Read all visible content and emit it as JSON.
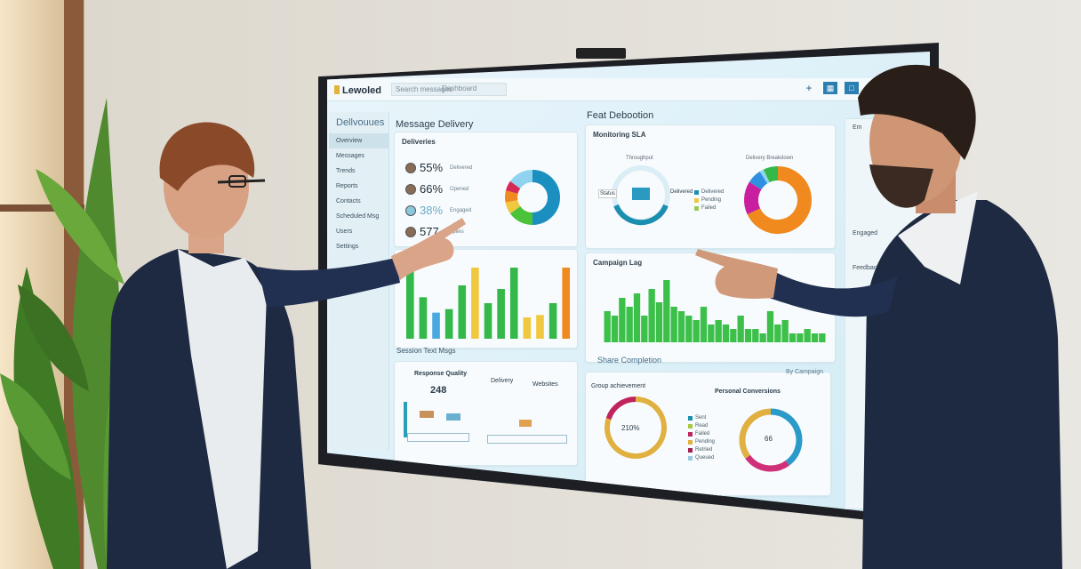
{
  "dashboard": {
    "logo": "Lewoled",
    "search_placeholder": "Search messages",
    "search2": "Dashboard",
    "sidebar": {
      "title": "Dellvouues",
      "items": [
        "Overview",
        "Messages",
        "Trends",
        "Reports",
        "Contacts",
        "Scheduled Msg",
        "Users",
        "Settings"
      ]
    },
    "section_left": "Message Delivery",
    "section_right": "Feat Debootion",
    "card_stats": {
      "title": "Deliveries",
      "stats": [
        {
          "value": "55%",
          "label": "Delivered"
        },
        {
          "value": "66%",
          "label": "Opened"
        },
        {
          "value": "38%",
          "label": "Engaged"
        },
        {
          "value": "577",
          "label": "Replies"
        }
      ],
      "donut": [
        {
          "value": 50,
          "color": "#1b8fc0"
        },
        {
          "value": 15,
          "color": "#4ac23a"
        },
        {
          "value": 7,
          "color": "#f0c840"
        },
        {
          "value": 7,
          "color": "#f08a1f"
        },
        {
          "value": 6,
          "color": "#d62a55"
        },
        {
          "value": 15,
          "color": "#8fd3f0"
        }
      ]
    },
    "card_sla": {
      "title": "Monitoring SLA",
      "gauge_label": "Throughput",
      "left_label": "Status",
      "right_label": "Delivered",
      "legend": [
        "Delivered",
        "Pending",
        "Failed"
      ],
      "donut_title": "Delivery Breakdown",
      "donut": [
        {
          "value": 68,
          "color": "#f08a1f"
        },
        {
          "value": 16,
          "color": "#c81fa0"
        },
        {
          "value": 7,
          "color": "#2f8fe0"
        },
        {
          "value": 2,
          "color": "#8fd3f0"
        },
        {
          "value": 7,
          "color": "#35b84a"
        }
      ]
    },
    "card_bars": {
      "values": [
        60,
        35,
        22,
        25,
        45,
        60,
        30,
        42,
        60,
        18,
        20,
        30,
        60
      ],
      "colors": [
        "#35b84a",
        "#35b84a",
        "#4aa8e0",
        "#35b84a",
        "#35b84a",
        "#f0c840",
        "#35b84a",
        "#35b84a",
        "#35b84a",
        "#f0c840",
        "#f0c840",
        "#35b84a",
        "#f08a1f"
      ]
    },
    "card_campaign": {
      "title": "Campaign Lag",
      "values": [
        35,
        30,
        50,
        40,
        55,
        30,
        60,
        45,
        70,
        40,
        35,
        30,
        25,
        40,
        20,
        25,
        20,
        15,
        30,
        15,
        15,
        10,
        35,
        20,
        25,
        10,
        10,
        15,
        10,
        10
      ]
    },
    "card_bottom_left": {
      "title": "Session Text Msgs",
      "sub1": "Response Quality",
      "value": "248",
      "sub2": "Delivery",
      "sub3": "Websites"
    },
    "card_bottom_right": {
      "title": "Share Completion",
      "filter": "By Campaign",
      "g1_title": "Group achievement",
      "g1_value": "210%",
      "g2_title": "Personal Conversions",
      "g2_value": "66",
      "legend": [
        "Sent",
        "Read",
        "Failed",
        "Pending",
        "Retried",
        "Queued"
      ],
      "g1": [
        {
          "value": 80,
          "color": "#e0b040"
        },
        {
          "value": 20,
          "color": "#c0245c"
        }
      ],
      "g2": [
        {
          "value": 40,
          "color": "#2a9ac8"
        },
        {
          "value": 25,
          "color": "#d0307a"
        },
        {
          "value": 35,
          "color": "#e0b040"
        }
      ]
    },
    "right_panel": [
      "Em",
      "Engaged",
      "Feedback"
    ]
  }
}
